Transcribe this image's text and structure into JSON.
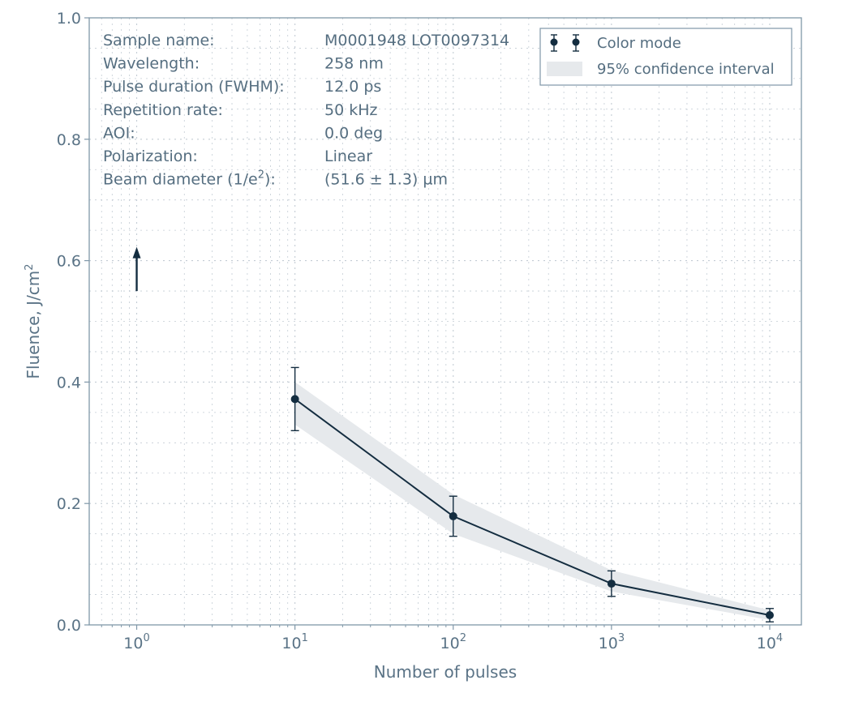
{
  "chart_data": {
    "type": "line",
    "xscale": "log",
    "xlabel": "Number of pulses",
    "ylabel": "Fluence, J/cm²",
    "ylabel_main": "Fluence, J/cm",
    "ylabel_sup": "2",
    "xlim_log10": [
      -0.3,
      4.2
    ],
    "ylim": [
      0.0,
      1.0
    ],
    "x_ticks": [
      {
        "base": "10",
        "exp": "0",
        "value": 1
      },
      {
        "base": "10",
        "exp": "1",
        "value": 10
      },
      {
        "base": "10",
        "exp": "2",
        "value": 100
      },
      {
        "base": "10",
        "exp": "3",
        "value": 1000
      },
      {
        "base": "10",
        "exp": "4",
        "value": 10000
      }
    ],
    "y_ticks": [
      "0.0",
      "0.2",
      "0.4",
      "0.6",
      "0.8",
      "1.0"
    ],
    "grid": true,
    "series": [
      {
        "name": "Color mode",
        "x": [
          10,
          100,
          1000,
          10000
        ],
        "y": [
          0.372,
          0.179,
          0.068,
          0.016
        ],
        "yerr": [
          0.052,
          0.033,
          0.021,
          0.011
        ],
        "color": "#142d40"
      }
    ],
    "confidence_band": {
      "name": "95% confidence interval",
      "x": [
        10,
        100,
        1000,
        10000
      ],
      "lower": [
        0.33,
        0.15,
        0.055,
        0.008
      ],
      "upper": [
        0.4,
        0.215,
        0.09,
        0.024
      ],
      "color": "#e6e9ec"
    },
    "lower_bound_marker": {
      "x": 1,
      "y_from": 0.55,
      "y_to": 0.62,
      "color": "#142d40"
    },
    "legend": {
      "position": "top-right",
      "entries": [
        "Color mode",
        "95% confidence interval"
      ]
    },
    "info_panel": [
      {
        "label": "Sample name:",
        "value": "M0001948 LOT0097314"
      },
      {
        "label": "Wavelength:",
        "value": "258 nm"
      },
      {
        "label": "Pulse duration (FWHM):",
        "value": "12.0 ps"
      },
      {
        "label": "Repetition rate:",
        "value": "50 kHz"
      },
      {
        "label": "AOI:",
        "value": "0.0 deg"
      },
      {
        "label": "Polarization:",
        "value": "Linear"
      },
      {
        "label": "Beam diameter (1/e2):",
        "label_main": "Beam diameter (1/e",
        "label_sup": "2",
        "label_tail": "):",
        "value": "(51.6 ± 1.3) µm"
      }
    ],
    "colors": {
      "axis": "#7f97a8",
      "grid": "#c3ccd4",
      "text": "#5a7386",
      "line": "#142d40",
      "band": "#e6e9ec"
    }
  }
}
